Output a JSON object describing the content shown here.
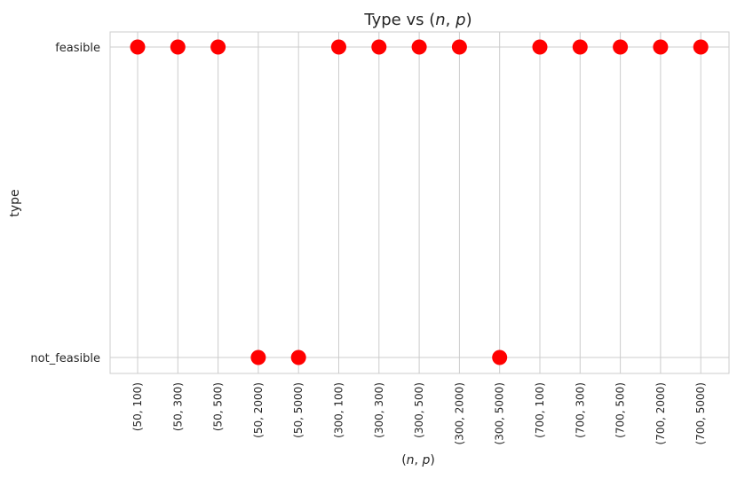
{
  "chart_data": {
    "type": "scatter",
    "title": "Type vs $(n, p)$",
    "xlabel": "$(n, p)$",
    "ylabel": "type",
    "grid": true,
    "marker_color": "#ff0000",
    "y_categories": [
      "feasible",
      "not_feasible"
    ],
    "categories": [
      "(50, 100)",
      "(50, 300)",
      "(50, 500)",
      "(50, 2000)",
      "(50, 5000)",
      "(300, 100)",
      "(300, 300)",
      "(300, 500)",
      "(300, 2000)",
      "(300, 5000)",
      "(700, 100)",
      "(700, 300)",
      "(700, 500)",
      "(700, 2000)",
      "(700, 5000)"
    ],
    "values": [
      "feasible",
      "feasible",
      "feasible",
      "not_feasible",
      "not_feasible",
      "feasible",
      "feasible",
      "feasible",
      "feasible",
      "not_feasible",
      "feasible",
      "feasible",
      "feasible",
      "feasible",
      "feasible"
    ]
  }
}
